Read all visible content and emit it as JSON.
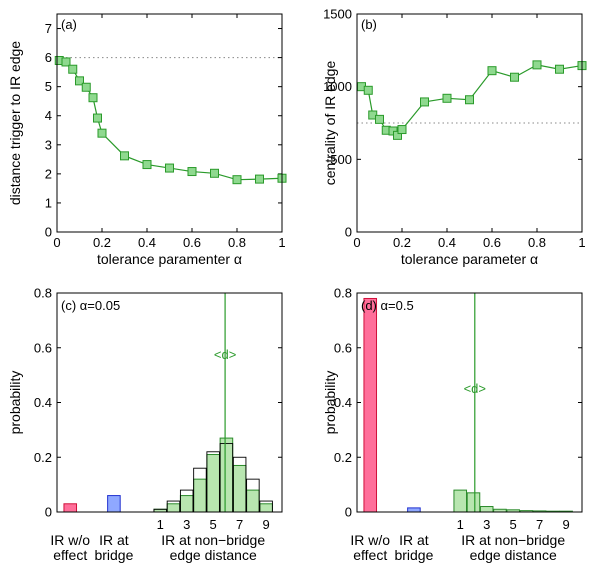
{
  "chart_data": [
    {
      "id": "a",
      "type": "line",
      "panel_label": "(a)",
      "xlabel": "tolerance paramenter α",
      "ylabel": "distance trigger to IR edge",
      "xlim": [
        0,
        1
      ],
      "ylim": [
        0,
        7.5
      ],
      "xticks": [
        0,
        0.2,
        0.4,
        0.6,
        0.8,
        1
      ],
      "xtick_labels": [
        "0",
        "0.2",
        "0.4",
        "0.6",
        "0.8",
        "1"
      ],
      "yticks": [
        0,
        1,
        2,
        3,
        4,
        5,
        6,
        7
      ],
      "ytick_labels": [
        "0",
        "1",
        "2",
        "3",
        "4",
        "5",
        "6",
        "7"
      ],
      "reference_line": 6.0,
      "color": "#2a9a2a",
      "marker_fill": "#8fd98f",
      "x": [
        0.01,
        0.04,
        0.07,
        0.1,
        0.13,
        0.16,
        0.18,
        0.2,
        0.3,
        0.4,
        0.5,
        0.6,
        0.7,
        0.8,
        0.9,
        1.0
      ],
      "y": [
        5.9,
        5.85,
        5.6,
        5.2,
        4.98,
        4.62,
        3.92,
        3.4,
        2.62,
        2.32,
        2.2,
        2.08,
        2.02,
        1.8,
        1.82,
        1.85
      ]
    },
    {
      "id": "b",
      "type": "line",
      "panel_label": "(b)",
      "xlabel": "tolerance parameter α",
      "ylabel": "centrality of IR edge",
      "xlim": [
        0,
        1
      ],
      "ylim": [
        0,
        1500
      ],
      "xticks": [
        0,
        0.2,
        0.4,
        0.6,
        0.8,
        1
      ],
      "xtick_labels": [
        "0",
        "0.2",
        "0.4",
        "0.6",
        "0.8",
        "1"
      ],
      "yticks": [
        0,
        500,
        1000,
        1500
      ],
      "ytick_labels": [
        "0",
        "500",
        "1000",
        "1500"
      ],
      "reference_line": 750,
      "color": "#2a9a2a",
      "marker_fill": "#8fd98f",
      "x": [
        0.02,
        0.05,
        0.07,
        0.1,
        0.13,
        0.16,
        0.18,
        0.2,
        0.3,
        0.4,
        0.5,
        0.6,
        0.7,
        0.8,
        0.9,
        1.0
      ],
      "y": [
        1000,
        975,
        805,
        775,
        700,
        695,
        665,
        705,
        895,
        920,
        910,
        1110,
        1065,
        1150,
        1120,
        1145
      ]
    },
    {
      "id": "c",
      "type": "bar",
      "panel_label": "(c) α=0.05",
      "ylabel": "probability",
      "ylim": [
        0,
        0.8
      ],
      "yticks": [
        0,
        0.2,
        0.4,
        0.6,
        0.8
      ],
      "ytick_labels": [
        "0",
        "0.2",
        "0.4",
        "0.6",
        "0.8"
      ],
      "mean_label": "<d>",
      "mean_d": 5.9,
      "ir_without_effect": 0.03,
      "ir_at_bridge": 0.06,
      "distance": [
        1,
        2,
        3,
        4,
        5,
        6,
        7,
        8,
        9
      ],
      "distance_ticks": [
        "1",
        "3",
        "5",
        "7",
        "9"
      ],
      "probability": [
        0.01,
        0.03,
        0.06,
        0.12,
        0.21,
        0.27,
        0.17,
        0.08,
        0.03
      ],
      "reference_probability": [
        0.01,
        0.04,
        0.08,
        0.16,
        0.22,
        0.25,
        0.2,
        0.12,
        0.04
      ],
      "category_labels": [
        [
          "IR w/o",
          "effect"
        ],
        [
          "IR at",
          "bridge"
        ],
        [
          "IR at non−bridge",
          "edge distance"
        ]
      ]
    },
    {
      "id": "d",
      "type": "bar",
      "panel_label": "(d) α=0.5",
      "ylabel": "probability",
      "ylim": [
        0,
        0.8
      ],
      "yticks": [
        0,
        0.2,
        0.4,
        0.6,
        0.8
      ],
      "ytick_labels": [
        "0",
        "0.2",
        "0.4",
        "0.6",
        "0.8"
      ],
      "mean_label": "<d>",
      "mean_d": 2.1,
      "ir_without_effect": 0.78,
      "ir_at_bridge": 0.015,
      "distance": [
        1,
        2,
        3,
        4,
        5,
        6,
        7,
        8,
        9
      ],
      "distance_ticks": [
        "1",
        "3",
        "5",
        "7",
        "9"
      ],
      "probability": [
        0.08,
        0.07,
        0.02,
        0.01,
        0.008,
        0.005,
        0.004,
        0.003,
        0.003
      ],
      "reference_probability": [],
      "category_labels": [
        [
          "IR w/o",
          "effect"
        ],
        [
          "IR at",
          "bridge"
        ],
        [
          "IR at non−bridge",
          "edge distance"
        ]
      ]
    }
  ],
  "colors": {
    "series": "#2a9a2a",
    "marker_fill": "#8fd98f",
    "ir_without_effect": "#ff6f9a",
    "ir_without_effect_edge": "#d0103a",
    "ir_at_bridge": "#8fa8ff",
    "ir_at_bridge_edge": "#2030d0",
    "distance_fill": "#b8e6b0",
    "distance_edge": "#2a8a2a",
    "reference_edge": "#000000"
  }
}
